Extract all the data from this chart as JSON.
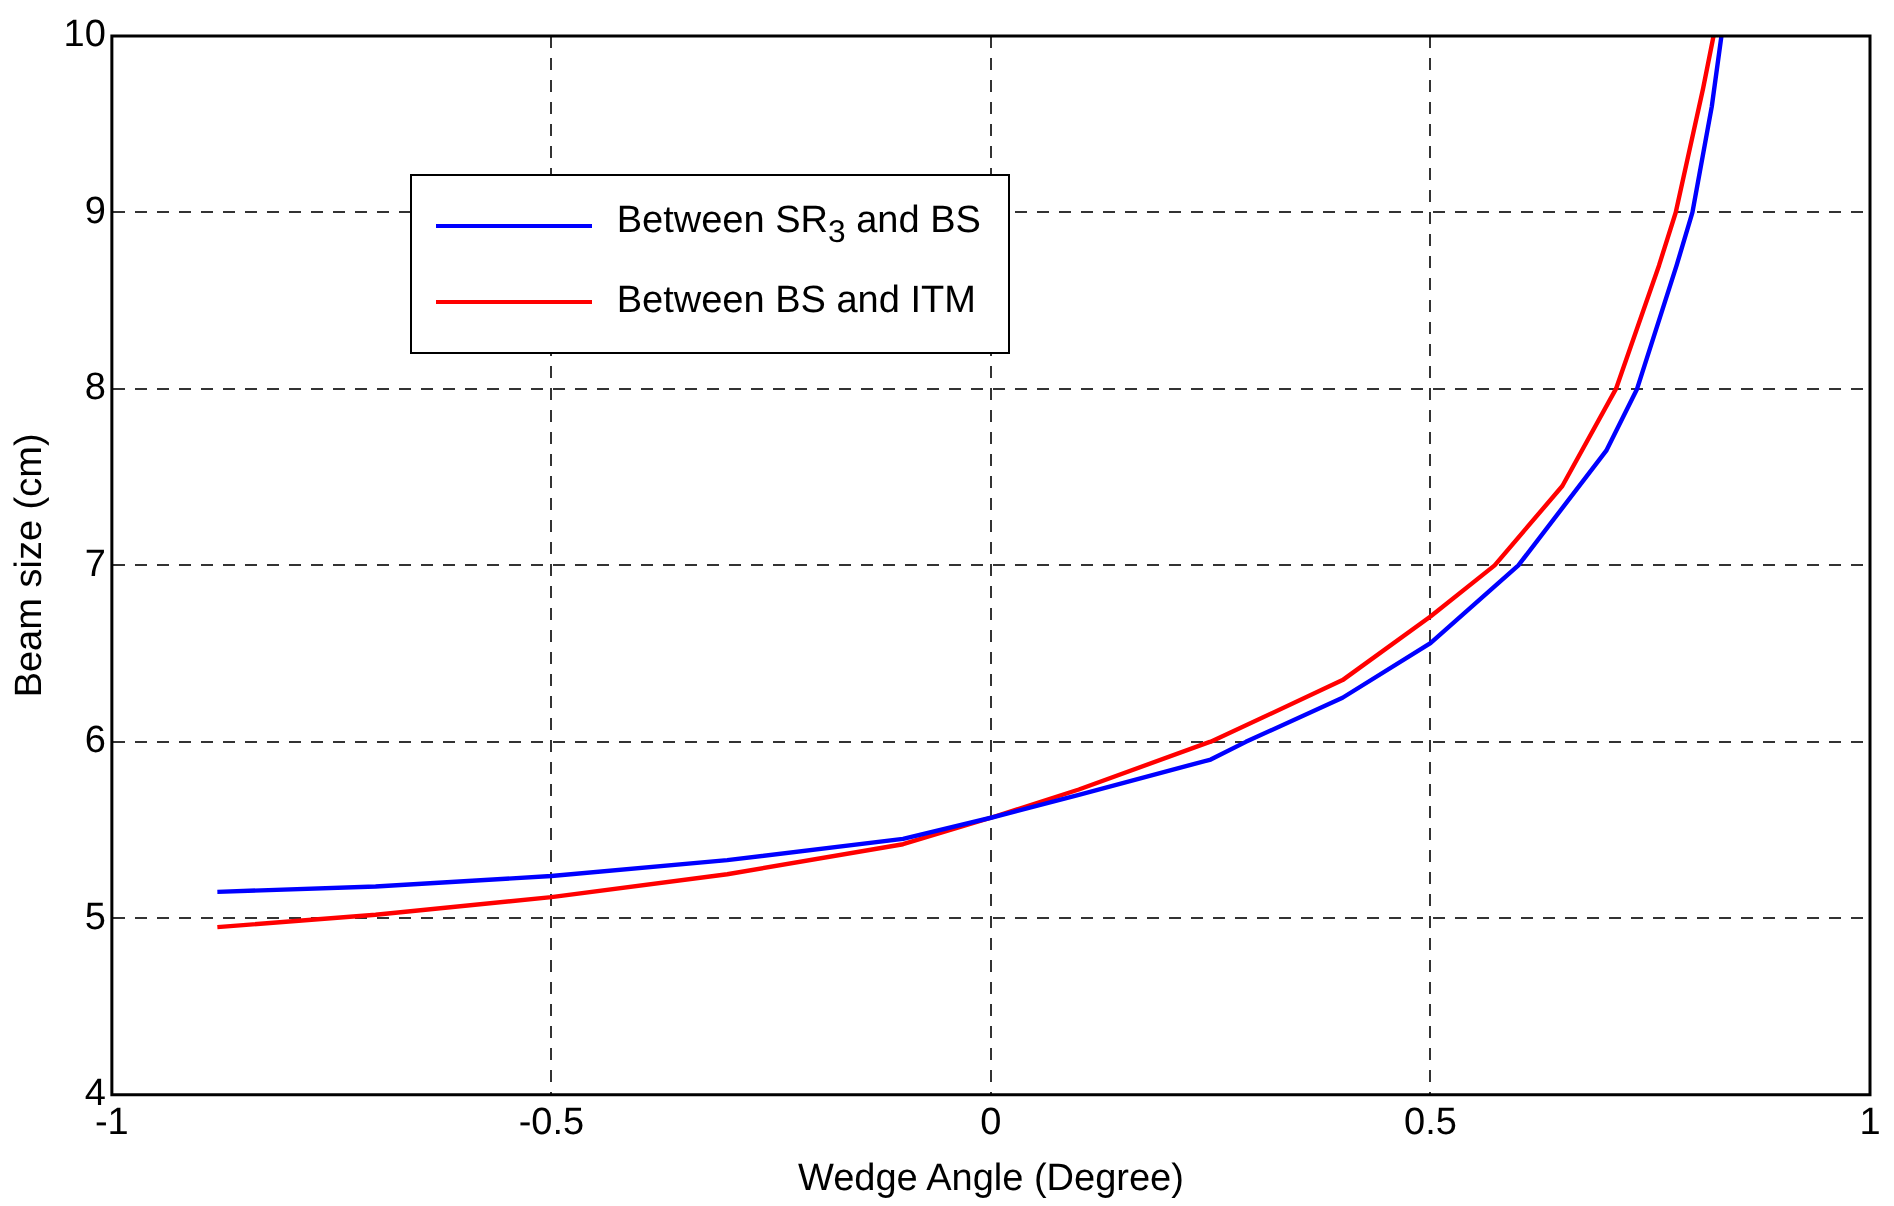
{
  "chart_data": {
    "type": "line",
    "xlabel": "Wedge Angle (Degree)",
    "ylabel": "Beam size (cm)",
    "xlim": [
      -1,
      1
    ],
    "xticks": [
      -1,
      -0.5,
      0,
      0.5,
      1
    ],
    "ylim": [
      4,
      10
    ],
    "yticks": [
      4,
      5,
      6,
      7,
      8,
      9,
      10
    ],
    "grid": true,
    "legend": "top left",
    "marker": "none",
    "line_style": "solid",
    "series": [
      {
        "name": "Between SR$_{3}$ and BS",
        "color": "#0000ff",
        "x": [
          -0.88,
          -0.7,
          -0.5,
          -0.3,
          -0.1,
          0,
          0.1,
          0.25,
          0.29,
          0.4,
          0.5,
          0.6,
          0.7,
          0.735,
          0.78,
          0.798,
          0.82,
          0.831
        ],
        "values": [
          5.15,
          5.18,
          5.24,
          5.33,
          5.45,
          5.57,
          5.7,
          5.9,
          6,
          6.25,
          6.56,
          7,
          7.65,
          8,
          8.7,
          9,
          9.6,
          10
        ]
      },
      {
        "name": "Between BS and ITM",
        "color": "#ff0000",
        "x": [
          -0.88,
          -0.7,
          -0.5,
          -0.3,
          -0.1,
          0,
          0.1,
          0.249,
          0.25,
          0.4,
          0.5,
          0.573,
          0.65,
          0.711,
          0.76,
          0.779,
          0.81,
          0.822
        ],
        "values": [
          4.95,
          5.02,
          5.12,
          5.25,
          5.42,
          5.57,
          5.73,
          6,
          6,
          6.35,
          6.71,
          7,
          7.45,
          8,
          8.7,
          9,
          9.7,
          10
        ]
      }
    ]
  }
}
